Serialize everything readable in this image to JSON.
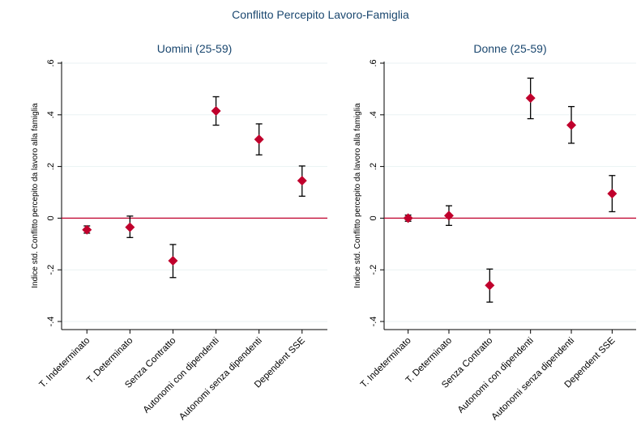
{
  "figure": {
    "title": "Conflitto Percepito Lavoro-Famiglia"
  },
  "colors": {
    "marker": "#c0002c",
    "zero_line": "#c0002c",
    "error_bar": "#000000",
    "grid": "#eaf2f3",
    "title": "#1a476f",
    "text": "#000000"
  },
  "chart_data": [
    {
      "type": "scatter",
      "title": "Uomini (25-59)",
      "ylabel": "Indice std. Conflitto percepito da lavoro alla famiglia",
      "xlabel": "",
      "categories": [
        "T. Indeterminato",
        "T. Determinato",
        "Senza Contratto",
        "Autonomi con dipendenti",
        "Autonomi senza dipendenti",
        "Dependent SSE"
      ],
      "values": [
        -0.045,
        -0.035,
        -0.165,
        0.415,
        0.305,
        0.145
      ],
      "ci_low": [
        -0.058,
        -0.075,
        -0.23,
        0.36,
        0.245,
        0.085
      ],
      "ci_high": [
        -0.03,
        0.008,
        -0.102,
        0.47,
        0.365,
        0.202
      ],
      "ylim": [
        -0.4,
        0.6
      ],
      "yticks": [
        -0.4,
        -0.2,
        0,
        0.2,
        0.4,
        0.6
      ],
      "ytick_labels": [
        "-.4",
        "-.2",
        "0",
        ".2",
        ".4",
        ".6"
      ],
      "reference_line": 0,
      "grid": true,
      "error_bars": true
    },
    {
      "type": "scatter",
      "title": "Donne (25-59)",
      "ylabel": "Indice std. Conflitto percepito da lavoro alla famiglia",
      "xlabel": "",
      "categories": [
        "T. Indeterminato",
        "T. Determinato",
        "Senza Contratto",
        "Autonomi con dipendenti",
        "Autonomi senza dipendenti",
        "Dependent SSE"
      ],
      "values": [
        0.0,
        0.01,
        -0.26,
        0.465,
        0.36,
        0.095
      ],
      "ci_low": [
        -0.012,
        -0.028,
        -0.325,
        0.385,
        0.29,
        0.025
      ],
      "ci_high": [
        0.012,
        0.048,
        -0.197,
        0.542,
        0.432,
        0.165
      ],
      "ylim": [
        -0.4,
        0.6
      ],
      "yticks": [
        -0.4,
        -0.2,
        0,
        0.2,
        0.4,
        0.6
      ],
      "ytick_labels": [
        "-.4",
        "-.2",
        "0",
        ".2",
        ".4",
        ".6"
      ],
      "reference_line": 0,
      "grid": true,
      "error_bars": true
    }
  ]
}
